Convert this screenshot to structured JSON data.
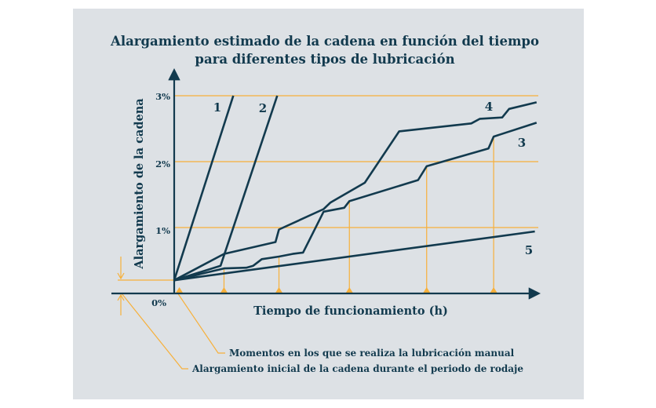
{
  "colors": {
    "navy": "#123a4e",
    "orange": "#f7b03a",
    "panel": "#dde1e5"
  },
  "chart_data": {
    "type": "line",
    "title": [
      "Alargamiento estimado de la cadena en función del tiempo",
      "para diferentes tipos de lubricación"
    ],
    "xlabel": "Tiempo de funcionamiento (h)",
    "ylabel": "Alargamiento de la cadena",
    "y_ticks": [
      {
        "label": "3%",
        "value": 3
      },
      {
        "label": "2%",
        "value": 2
      },
      {
        "label": "1%",
        "value": 1
      },
      {
        "label": "0%",
        "value": 0
      }
    ],
    "ylim": [
      0,
      3.1
    ],
    "xlim": [
      0,
      10.6
    ],
    "grid": true,
    "lubrication_times": [
      0.15,
      1.45,
      3.05,
      5.1,
      7.35,
      9.3
    ],
    "series": [
      {
        "name": "1",
        "x": [
          0,
          1.72
        ],
        "y": [
          0.2,
          3.0
        ]
      },
      {
        "name": "2",
        "x": [
          0,
          1.35,
          3.0
        ],
        "y": [
          0.2,
          0.42,
          3.0
        ]
      },
      {
        "name": "3",
        "x": [
          0,
          1.45,
          2.1,
          2.3,
          2.55,
          3.05,
          3.45,
          3.75,
          4.35,
          4.95,
          5.1,
          7.1,
          7.35,
          9.15,
          9.3,
          10.55
        ],
        "y": [
          0.2,
          0.38,
          0.39,
          0.42,
          0.52,
          0.56,
          0.6,
          0.62,
          1.24,
          1.3,
          1.4,
          1.72,
          1.93,
          2.2,
          2.38,
          2.59
        ]
      },
      {
        "name": "4",
        "x": [
          0,
          1.45,
          2.95,
          3.05,
          4.35,
          4.55,
          5.55,
          6.55,
          8.65,
          8.9,
          9.55,
          9.75,
          10.55
        ],
        "y": [
          0.2,
          0.6,
          0.78,
          0.97,
          1.28,
          1.38,
          1.68,
          2.46,
          2.58,
          2.65,
          2.67,
          2.8,
          2.9
        ]
      },
      {
        "name": "5",
        "x": [
          0,
          10.5
        ],
        "y": [
          0.2,
          0.94
        ]
      }
    ],
    "annotations": [
      "Momentos en los que se realiza la lubricación manual",
      "Alargamiento inicial de la cadena durante el periodo de rodaje"
    ]
  }
}
